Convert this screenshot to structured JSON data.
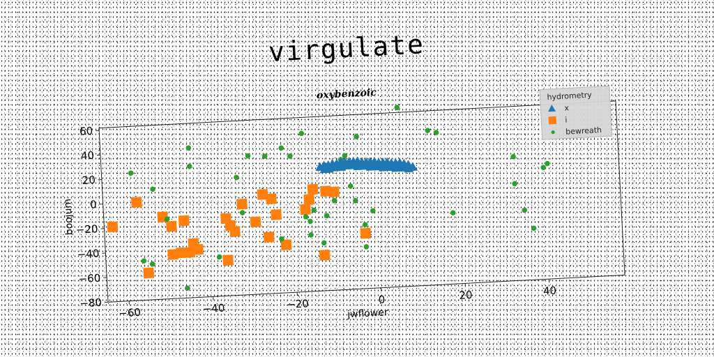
{
  "header": {
    "title": "virgulate"
  },
  "chart_data": {
    "type": "scatter",
    "title": "oxybenzoic",
    "xlabel": "jwflower",
    "ylabel": "boojum",
    "xlim": [
      -65,
      58
    ],
    "ylim": [
      -80,
      62
    ],
    "xticks": [
      -60,
      -40,
      -20,
      0,
      20,
      40
    ],
    "yticks": [
      -80,
      -60,
      -40,
      -20,
      0,
      20,
      40,
      60
    ],
    "grid": false,
    "legend": {
      "title": "hydrometry",
      "position": "top-right"
    },
    "series": [
      {
        "name": "x",
        "marker": "triangle",
        "color": "#1f77b4",
        "points": [
          [
            -13,
            21
          ],
          [
            -12,
            22
          ],
          [
            -11,
            22
          ],
          [
            -10,
            23
          ],
          [
            -9,
            23
          ],
          [
            -8,
            24
          ],
          [
            -7,
            24
          ],
          [
            -6,
            24
          ],
          [
            -5,
            24
          ],
          [
            -4,
            24
          ],
          [
            -3,
            23
          ],
          [
            -2,
            23
          ],
          [
            -1,
            23
          ],
          [
            0,
            23
          ],
          [
            1,
            22
          ],
          [
            2,
            22
          ],
          [
            3,
            22
          ],
          [
            4,
            21
          ],
          [
            5,
            21
          ],
          [
            6,
            21
          ],
          [
            7,
            20
          ],
          [
            8,
            19
          ],
          [
            -12,
            19
          ],
          [
            -11,
            19
          ],
          [
            -10,
            20
          ],
          [
            -9,
            20
          ],
          [
            -8,
            20
          ],
          [
            -7,
            21
          ],
          [
            -6,
            21
          ],
          [
            -5,
            21
          ],
          [
            -4,
            20
          ],
          [
            -3,
            20
          ],
          [
            -2,
            20
          ],
          [
            -1,
            19
          ],
          [
            0,
            19
          ],
          [
            1,
            19
          ],
          [
            2,
            18
          ],
          [
            3,
            18
          ],
          [
            4,
            18
          ],
          [
            5,
            17
          ],
          [
            6,
            17
          ],
          [
            7,
            17
          ],
          [
            8,
            16
          ],
          [
            9,
            17
          ]
        ]
      },
      {
        "name": "i",
        "marker": "square",
        "color": "#ff7f0e",
        "points": [
          [
            -63,
            -19
          ],
          [
            -57,
            0
          ],
          [
            -51,
            -13
          ],
          [
            -49,
            -21
          ],
          [
            -49,
            -44
          ],
          [
            -47,
            -43
          ],
          [
            -46,
            -17
          ],
          [
            -45,
            -43
          ],
          [
            -44,
            -36
          ],
          [
            -43,
            -41
          ],
          [
            -36,
            -17
          ],
          [
            -36,
            -51
          ],
          [
            -35,
            -23
          ],
          [
            -34,
            -28
          ],
          [
            -32,
            -6
          ],
          [
            -29,
            -21
          ],
          [
            -27,
            1
          ],
          [
            -26,
            -34
          ],
          [
            -25,
            -3
          ],
          [
            -24,
            -16
          ],
          [
            -22,
            -41
          ],
          [
            -17,
            -13
          ],
          [
            -16,
            -5
          ],
          [
            -15,
            3
          ],
          [
            -13,
            -51
          ],
          [
            -12,
            1
          ],
          [
            -10,
            0
          ],
          [
            -3,
            -35
          ],
          [
            -55,
            -58
          ]
        ]
      },
      {
        "name": "bewreath",
        "marker": "circle",
        "color": "#2ca02c",
        "points": [
          [
            -58,
            24
          ],
          [
            -56,
            -48
          ],
          [
            -54,
            -51
          ],
          [
            -53,
            10
          ],
          [
            -50,
            -15
          ],
          [
            -46,
            -72
          ],
          [
            -44,
            42
          ],
          [
            -44,
            27
          ],
          [
            -38,
            -48
          ],
          [
            -33,
            16
          ],
          [
            -32,
            -13
          ],
          [
            -30,
            33
          ],
          [
            -26,
            32
          ],
          [
            -23,
            -36
          ],
          [
            -22,
            38
          ],
          [
            -20,
            31
          ],
          [
            -17,
            -19
          ],
          [
            -17,
            49
          ],
          [
            -16,
            -23
          ],
          [
            -16,
            -34
          ],
          [
            -15,
            -14
          ],
          [
            -13,
            -41
          ],
          [
            -12,
            -19
          ],
          [
            -10,
            -7
          ],
          [
            -8,
            26
          ],
          [
            -7,
            29
          ],
          [
            -6,
            4
          ],
          [
            -5,
            -8
          ],
          [
            -4,
            44
          ],
          [
            -3,
            -46
          ],
          [
            -3,
            -28
          ],
          [
            -1,
            -17
          ],
          [
            6,
            66
          ],
          [
            13,
            46
          ],
          [
            15,
            44
          ],
          [
            18,
            -22
          ],
          [
            33,
            21
          ],
          [
            33,
            -1
          ],
          [
            35,
            -23
          ],
          [
            37,
            -38
          ],
          [
            40,
            11
          ],
          [
            41,
            14
          ],
          [
            49,
            37
          ]
        ]
      }
    ]
  }
}
